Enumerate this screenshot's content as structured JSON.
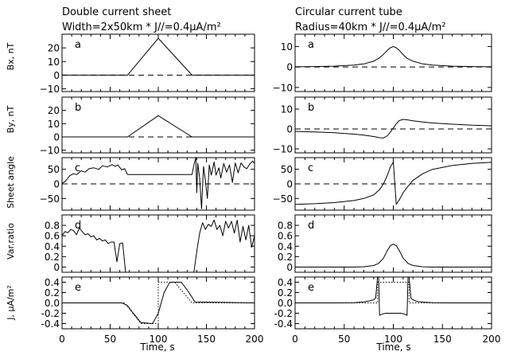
{
  "columns": [
    {
      "title_line1": "Double current sheet",
      "title_line2": "Width=2x50km * J//=0.4μA/m²",
      "xlabel": "Time, s",
      "x_tick_labels": [
        "0",
        "50",
        "100",
        "150",
        "200"
      ]
    },
    {
      "title_line1": "Circular current tube",
      "title_line2": "Radius=40km * J//=0.4μA/m²",
      "xlabel": "Time, s",
      "x_tick_labels": [
        "0",
        "50",
        "100",
        "150",
        "200"
      ]
    }
  ],
  "row_labels": [
    "Bx, nT",
    "By, nT",
    "Sheet angle",
    "Var.ratio",
    "J, μA/m²"
  ],
  "chart_data": [
    {
      "type": "line",
      "title": "Double current sheet — Width=2x50km * J//=0.4μA/m²",
      "xlabel": "Time, s",
      "xlim": [
        0,
        200
      ],
      "grid": false,
      "panels": [
        {
          "label": "a",
          "ylabel": "Bx, nT",
          "ylim": [
            -12,
            30
          ],
          "y_ticks": [
            20,
            10,
            0,
            -10
          ],
          "y_tick_labels": [
            "20",
            "10",
            "0",
            "−10"
          ],
          "reference_line": 0,
          "series": [
            {
              "style": "solid",
              "x": [
                0,
                68,
                100,
                135,
                200
              ],
              "y": [
                0,
                0,
                27,
                0,
                0
              ]
            }
          ]
        },
        {
          "label": "b",
          "ylabel": "By, nT",
          "ylim": [
            -12,
            30
          ],
          "y_ticks": [
            20,
            10,
            0,
            -10
          ],
          "y_tick_labels": [
            "20",
            "10",
            "0",
            "−10"
          ],
          "reference_line": 0,
          "series": [
            {
              "style": "solid",
              "x": [
                0,
                68,
                100,
                135,
                200
              ],
              "y": [
                0,
                0,
                16,
                0,
                0
              ]
            }
          ]
        },
        {
          "label": "c",
          "ylabel": "Sheet angle",
          "ylim": [
            -90,
            90
          ],
          "y_ticks": [
            50,
            0,
            -50
          ],
          "y_tick_labels": [
            "50",
            "0",
            "−50"
          ],
          "reference_line": 0,
          "series": [
            {
              "style": "solid",
              "x": [
                0,
                3,
                5,
                8,
                12,
                15,
                20,
                24,
                28,
                33,
                38,
                42,
                47,
                52,
                55,
                58,
                62,
                65,
                68,
                135,
                137,
                139,
                140,
                141,
                143,
                145,
                147,
                149,
                151,
                153,
                155,
                158,
                160,
                163,
                165,
                168,
                171,
                174,
                177,
                180,
                183,
                186,
                189,
                192,
                195,
                198,
                200
              ],
              "y": [
                2,
                8,
                15,
                28,
                35,
                32,
                45,
                40,
                52,
                55,
                50,
                62,
                58,
                66,
                60,
                65,
                48,
                52,
                32,
                32,
                65,
                90,
                -30,
                70,
                20,
                -85,
                60,
                10,
                -50,
                65,
                30,
                75,
                30,
                55,
                20,
                70,
                40,
                65,
                5,
                72,
                38,
                72,
                58,
                52,
                68,
                78,
                70
              ]
            }
          ]
        },
        {
          "label": "d",
          "ylabel": "Var.ratio",
          "ylim": [
            -0.1,
            1.0
          ],
          "y_ticks": [
            0.8,
            0.6,
            0.4,
            0.2,
            0
          ],
          "y_tick_labels": [
            "0.8",
            "0.6",
            "0.4",
            "0.2",
            "0"
          ],
          "series": [
            {
              "style": "solid",
              "x": [
                0,
                3,
                6,
                9,
                12,
                15,
                18,
                21,
                24,
                27,
                30,
                33,
                36,
                39,
                42,
                45,
                48,
                51,
                54,
                57,
                60,
                63,
                66,
                137,
                140,
                143,
                146,
                149,
                152,
                155,
                158,
                161,
                164,
                167,
                170,
                173,
                176,
                179,
                182,
                185,
                188,
                191,
                194,
                197,
                200
              ],
              "y": [
                0.6,
                0.68,
                0.66,
                0.72,
                0.7,
                0.62,
                0.75,
                0.68,
                0.62,
                0.64,
                0.58,
                0.6,
                0.52,
                0.55,
                0.5,
                0.52,
                0.45,
                0.48,
                0.48,
                0.1,
                0.45,
                0.46,
                -0.1,
                -0.1,
                0.3,
                0.65,
                0.85,
                0.72,
                0.82,
                0.78,
                0.9,
                0.72,
                0.8,
                0.6,
                0.88,
                0.75,
                0.88,
                0.65,
                0.9,
                0.48,
                0.78,
                0.52,
                0.8,
                0.38,
                0.6
              ]
            }
          ]
        },
        {
          "label": "e",
          "ylabel": "J, μA/m²",
          "ylim": [
            -0.5,
            0.5
          ],
          "y_ticks": [
            0.4,
            0.2,
            0.0,
            -0.2,
            -0.4
          ],
          "y_tick_labels": [
            "0.4",
            "0.2",
            "0.0",
            "-0.2",
            "-0.4"
          ],
          "series": [
            {
              "style": "solid",
              "x": [
                0,
                62,
                68,
                74,
                82,
                94,
                100,
                106,
                112,
                124,
                132,
                138,
                200
              ],
              "y": [
                0,
                0,
                -0.05,
                -0.2,
                -0.38,
                -0.4,
                -0.2,
                0.2,
                0.4,
                0.4,
                0.2,
                0.02,
                0
              ]
            },
            {
              "style": "dotted",
              "x": [
                0,
                65,
                82,
                100,
                100,
                117,
                135,
                200
              ],
              "y": [
                0,
                0,
                -0.4,
                -0.4,
                0.4,
                0.4,
                0,
                0
              ]
            }
          ]
        }
      ]
    },
    {
      "type": "line",
      "title": "Circular current tube — Radius=40km * J//=0.4μA/m²",
      "xlabel": "Time, s",
      "xlim": [
        0,
        200
      ],
      "grid": false,
      "panels": [
        {
          "label": "a",
          "ylabel": "",
          "ylim": [
            -12,
            16
          ],
          "y_ticks": [
            10,
            0,
            -10
          ],
          "y_tick_labels": [
            "10",
            "0",
            "−10"
          ],
          "reference_line": 0,
          "series": [
            {
              "style": "solid",
              "x": [
                0,
                20,
                40,
                60,
                70,
                80,
                86,
                90,
                94,
                97,
                100,
                103,
                106,
                110,
                114,
                120,
                130,
                140,
                160,
                180,
                200
              ],
              "y": [
                0.1,
                0.2,
                0.4,
                0.9,
                1.5,
                2.8,
                4.5,
                6.2,
                8.2,
                9.4,
                10,
                9.4,
                8.2,
                6,
                4.2,
                2.8,
                1.5,
                0.9,
                0.4,
                0.2,
                0.1
              ]
            }
          ]
        },
        {
          "label": "b",
          "ylabel": "",
          "ylim": [
            -12,
            16
          ],
          "y_ticks": [
            10,
            0,
            -10
          ],
          "y_tick_labels": [
            "10",
            "0",
            "−10"
          ],
          "reference_line": 0,
          "series": [
            {
              "style": "solid",
              "x": [
                0,
                20,
                40,
                60,
                70,
                80,
                86,
                90,
                94,
                97,
                100,
                103,
                106,
                110,
                114,
                120,
                130,
                140,
                160,
                180,
                200
              ],
              "y": [
                -1.2,
                -1.5,
                -1.9,
                -2.6,
                -3.1,
                -3.8,
                -4.4,
                -4.5,
                -3.4,
                -1.5,
                0.5,
                2.6,
                4.2,
                4.8,
                4.6,
                4.1,
                3.5,
                3.0,
                2.4,
                1.9,
                1.6
              ]
            }
          ]
        },
        {
          "label": "c",
          "ylabel": "",
          "ylim": [
            -90,
            90
          ],
          "y_ticks": [
            50,
            0,
            -50
          ],
          "y_tick_labels": [
            "50",
            "0",
            "−50"
          ],
          "reference_line": 0,
          "series": [
            {
              "style": "solid",
              "x": [
                0,
                20,
                40,
                60,
                70,
                80,
                86,
                90,
                94,
                97,
                100,
                103,
                106,
                110,
                115,
                120,
                130,
                140,
                160,
                180,
                200
              ],
              "y": [
                -70,
                -68,
                -64,
                -57,
                -50,
                -38,
                -20,
                0,
                30,
                58,
                75,
                -70,
                -55,
                -30,
                -8,
                12,
                35,
                50,
                63,
                70,
                74
              ]
            }
          ]
        },
        {
          "label": "d",
          "ylabel": "",
          "ylim": [
            -0.1,
            1.0
          ],
          "y_ticks": [
            0.8,
            0.6,
            0.4,
            0.2,
            0
          ],
          "y_tick_labels": [
            "0.8",
            "0.6",
            "0.4",
            "0.2",
            "0"
          ],
          "series": [
            {
              "style": "solid",
              "x": [
                0,
                60,
                70,
                80,
                85,
                90,
                94,
                97,
                100,
                103,
                106,
                110,
                115,
                120,
                130,
                140,
                200
              ],
              "y": [
                0,
                0,
                0.005,
                0.03,
                0.07,
                0.17,
                0.32,
                0.41,
                0.44,
                0.41,
                0.32,
                0.17,
                0.07,
                0.03,
                0.005,
                0,
                0
              ]
            }
          ]
        },
        {
          "label": "e",
          "ylabel": "",
          "ylim": [
            -0.5,
            0.5
          ],
          "y_ticks": [
            0.4,
            0.2,
            0.0,
            -0.2,
            -0.4
          ],
          "y_tick_labels": [
            "0.4",
            "0.2",
            "0.0",
            "-0.2",
            "-0.4"
          ],
          "series": [
            {
              "style": "solid",
              "x": [
                0,
                40,
                60,
                70,
                76,
                80,
                82,
                84,
                85,
                86,
                88,
                92,
                96,
                100,
                104,
                108,
                112,
                114,
                115,
                116,
                118,
                120,
                124,
                130,
                140,
                160,
                200
              ],
              "y": [
                0,
                0,
                0.005,
                0.02,
                0.04,
                0.06,
                0.09,
                0.5,
                0.5,
                -0.24,
                -0.22,
                -0.2,
                -0.2,
                -0.2,
                -0.2,
                -0.2,
                -0.22,
                -0.24,
                0.5,
                0.5,
                0.09,
                0.06,
                0.03,
                0.015,
                0.005,
                0,
                0
              ]
            },
            {
              "style": "dotted",
              "x": [
                0,
                84,
                84,
                116,
                116,
                200
              ],
              "y": [
                0,
                0,
                0.4,
                0.4,
                0,
                0
              ]
            }
          ]
        }
      ]
    }
  ]
}
